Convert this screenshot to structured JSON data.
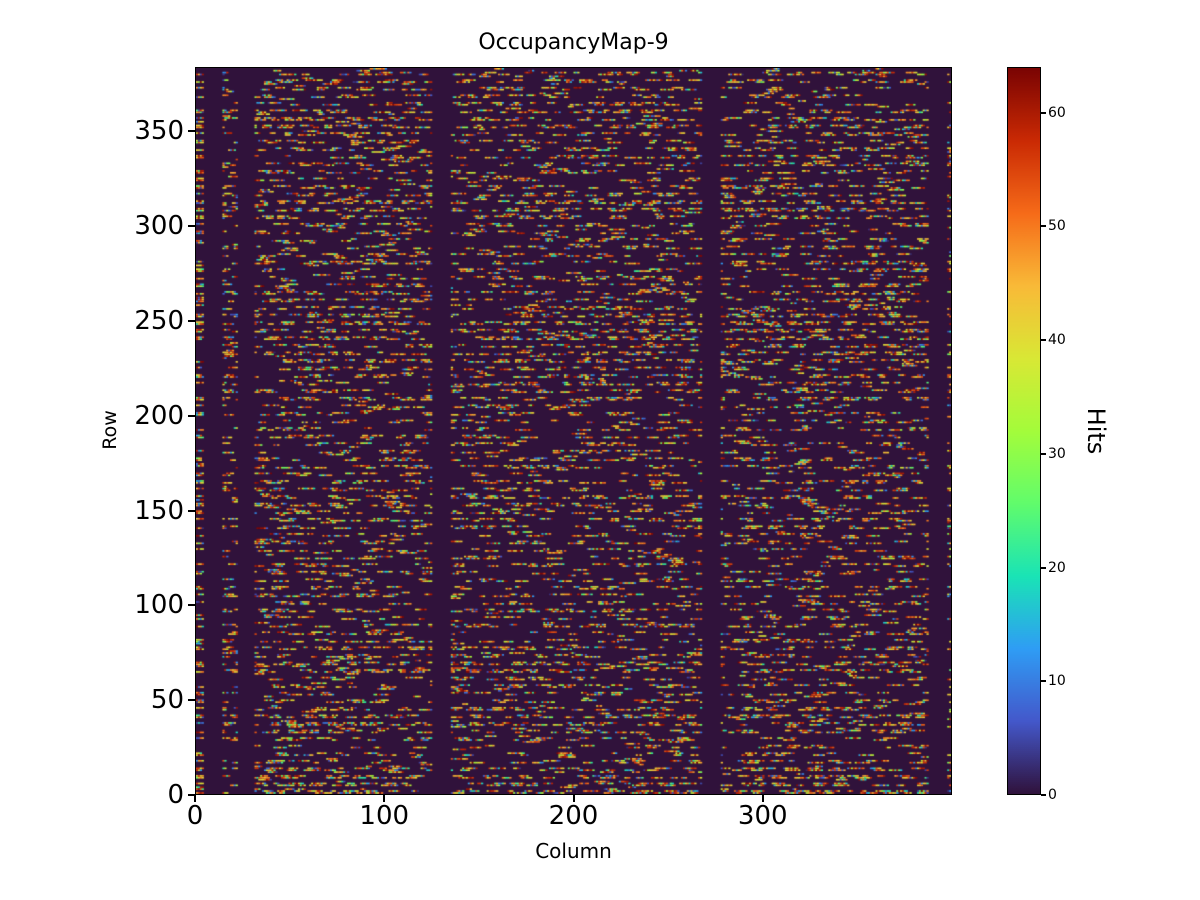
{
  "chart_data": {
    "type": "heatmap",
    "title": "OccupancyMap-9",
    "xlabel": "Column",
    "ylabel": "Row",
    "colorbar_label": "Hits",
    "grid": {
      "cols": 400,
      "rows": 384
    },
    "xlim": [
      0,
      400
    ],
    "ylim": [
      0,
      384
    ],
    "vmin": 0,
    "vmax": 64,
    "xticks": [
      0,
      100,
      200,
      300
    ],
    "yticks": [
      0,
      50,
      100,
      150,
      200,
      250,
      300,
      350
    ],
    "colorbar_ticks": [
      0,
      10,
      20,
      30,
      40,
      50,
      60
    ],
    "legend_position": "right-colorbar",
    "grid_lines": false,
    "zero_color": "#30123b",
    "colormap": {
      "name": "turbo",
      "stops": [
        [
          0.0,
          "#30123b"
        ],
        [
          0.1,
          "#4458cb"
        ],
        [
          0.2,
          "#2f9df5"
        ],
        [
          0.3,
          "#1ae4b6"
        ],
        [
          0.4,
          "#61fc6c"
        ],
        [
          0.5,
          "#a4fc3b"
        ],
        [
          0.6,
          "#d9e835"
        ],
        [
          0.7,
          "#f9ba38"
        ],
        [
          0.8,
          "#f66b19"
        ],
        [
          0.9,
          "#ca2a04"
        ],
        [
          1.0,
          "#7a0403"
        ]
      ]
    },
    "dead_column_ranges": [
      [
        4,
        13
      ],
      [
        22,
        30
      ],
      [
        125,
        134
      ],
      [
        268,
        277
      ],
      [
        388,
        397
      ]
    ],
    "pattern": {
      "seed": 9,
      "row_period": 4,
      "active_rows_per_period": 2,
      "active_fill_prob": 0.62,
      "sparse_fill_prob": 0.09,
      "dash_min": 3,
      "dash_max": 9,
      "gap_min": 2,
      "gap_max": 6,
      "value_mix": {
        "low_frac": 0.15,
        "mid_frac": 0.2,
        "high_frac": 0.65
      }
    }
  }
}
